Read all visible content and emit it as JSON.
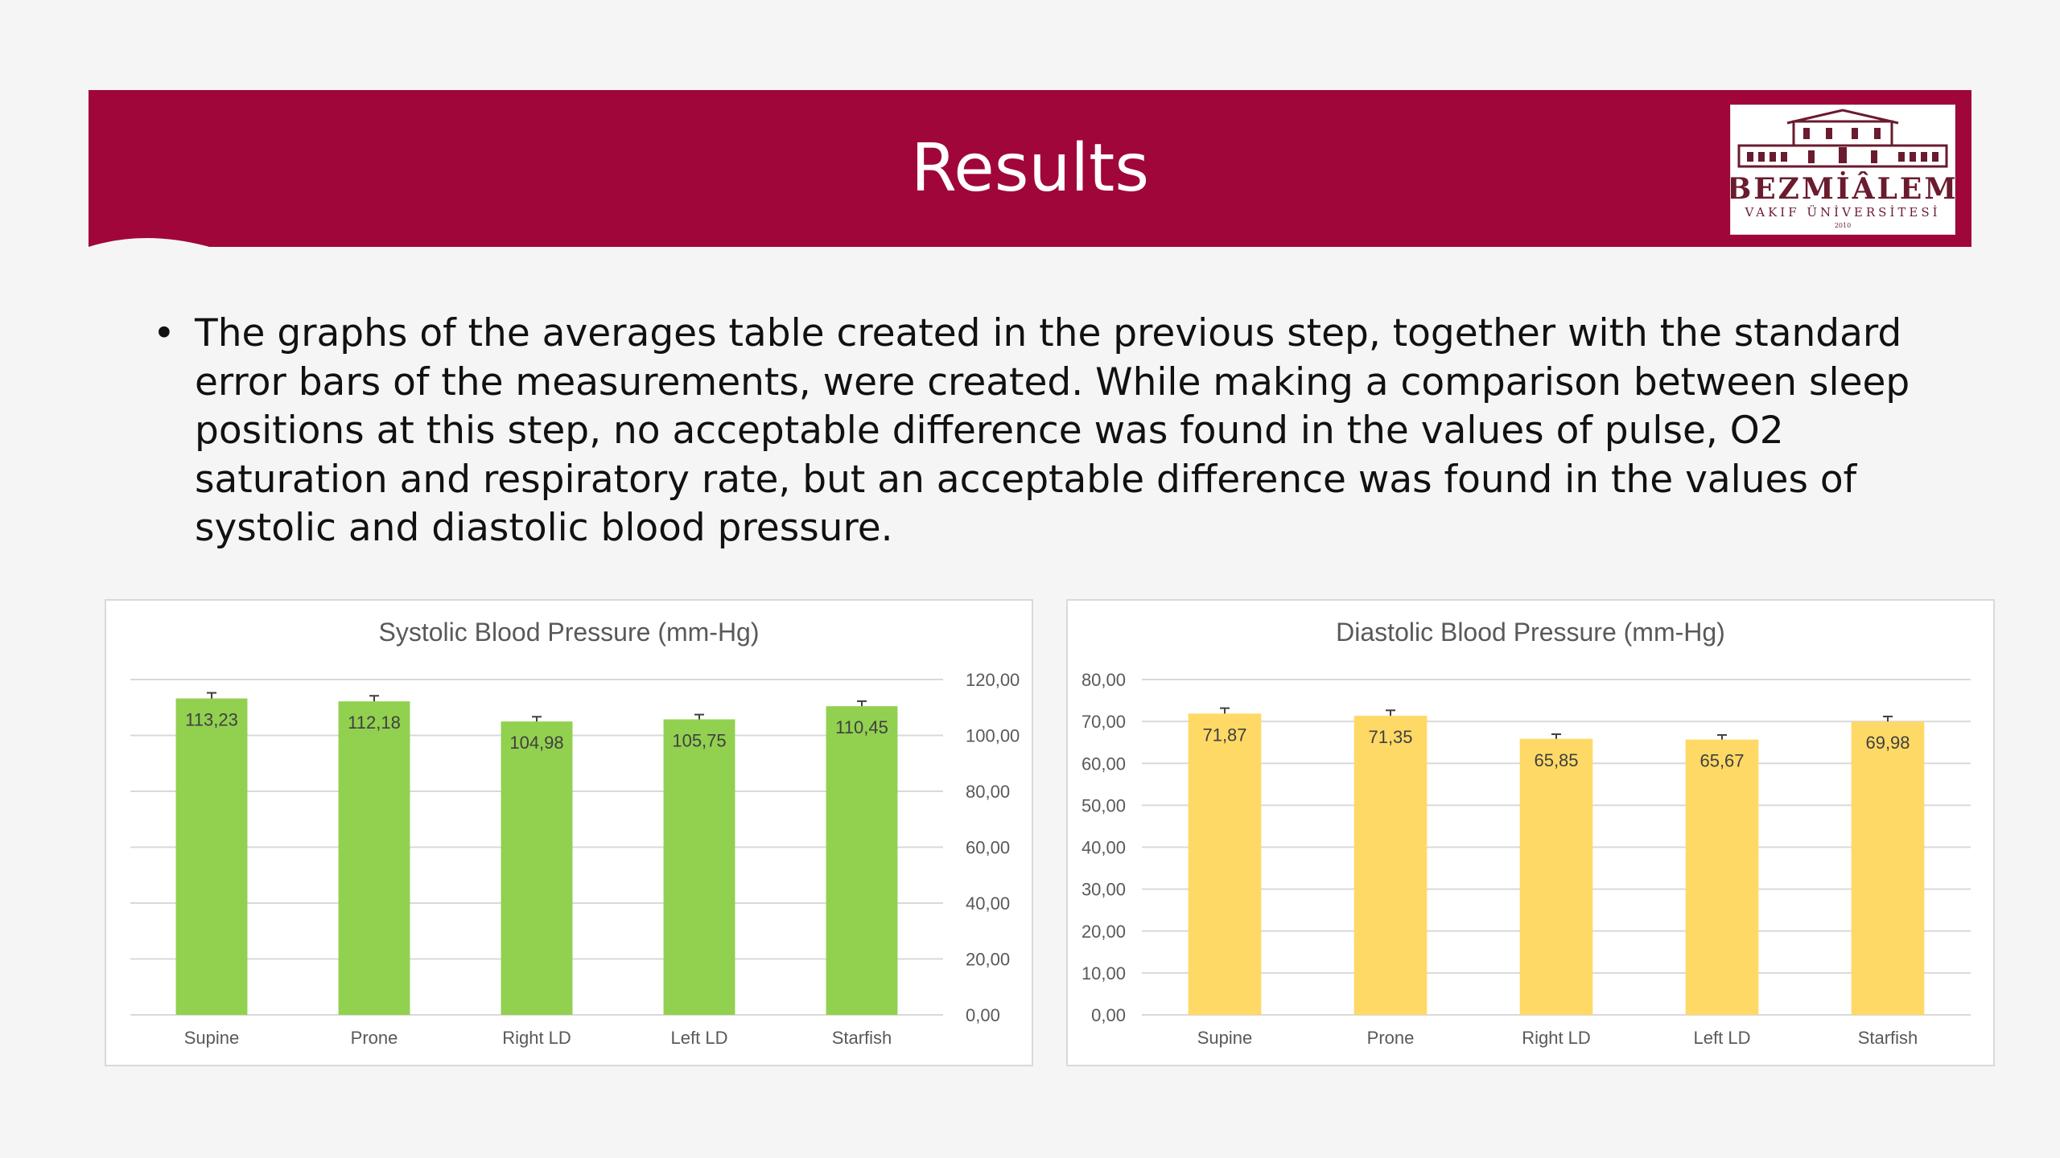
{
  "slide": {
    "title": "Results",
    "logo": {
      "name": "BEZMİÂLEM",
      "subtitle": "VAKIF ÜNİVERSİTESİ",
      "year": "2010"
    },
    "bullet": "The graphs of the averages table created in the previous step, together with the standard error bars of the measurements, were created. While making a comparison between sleep positions at this step, no acceptable difference was found in the values of pulse, O2 saturation and respiratory rate, but an acceptable difference was found in the values of systolic and diastolic blood pressure.",
    "bullet_lines": [
      "The graphs of the averages table created in the previous step, together with the standard",
      "error bars of the measurements, were created. While making a comparison between sleep",
      "positions at this step, no acceptable difference was found in the values of pulse, O2",
      "saturation and respiratory rate, but an acceptable difference was found in the values of",
      "systolic and diastolic blood pressure."
    ],
    "colors": {
      "banner": "#a0063a",
      "green": "#92d050",
      "yellow": "#ffd966"
    }
  },
  "chart_data": [
    {
      "type": "bar",
      "title": "Systolic Blood Pressure (mm-Hg)",
      "categories": [
        "Supine",
        "Prone",
        "Right LD",
        "Left LD",
        "Starfish"
      ],
      "values": [
        113.23,
        112.18,
        104.98,
        105.75,
        110.45
      ],
      "value_labels": [
        "113,23",
        "112,18",
        "104,98",
        "105,75",
        "110,45"
      ],
      "errors": [
        2.0,
        2.0,
        1.7,
        1.7,
        1.8
      ],
      "ylim": [
        0,
        120
      ],
      "ticks": [
        "0,00",
        "20,00",
        "40,00",
        "60,00",
        "80,00",
        "100,00",
        "120,00"
      ],
      "tick_values": [
        0,
        20,
        40,
        60,
        80,
        100,
        120
      ],
      "y_axis_side": "right",
      "color": "#92d050",
      "grid": true,
      "legend": "none"
    },
    {
      "type": "bar",
      "title": "Diastolic Blood Pressure (mm-Hg)",
      "categories": [
        "Supine",
        "Prone",
        "Right LD",
        "Left LD",
        "Starfish"
      ],
      "values": [
        71.87,
        71.35,
        65.85,
        65.67,
        69.98
      ],
      "value_labels": [
        "71,87",
        "71,35",
        "65,85",
        "65,67",
        "69,98"
      ],
      "errors": [
        1.3,
        1.3,
        1.1,
        1.1,
        1.2
      ],
      "ylim": [
        0,
        80
      ],
      "ticks": [
        "0,00",
        "10,00",
        "20,00",
        "30,00",
        "40,00",
        "50,00",
        "60,00",
        "70,00",
        "80,00"
      ],
      "tick_values": [
        0,
        10,
        20,
        30,
        40,
        50,
        60,
        70,
        80
      ],
      "y_axis_side": "left",
      "color": "#ffd966",
      "grid": true,
      "legend": "none"
    }
  ]
}
